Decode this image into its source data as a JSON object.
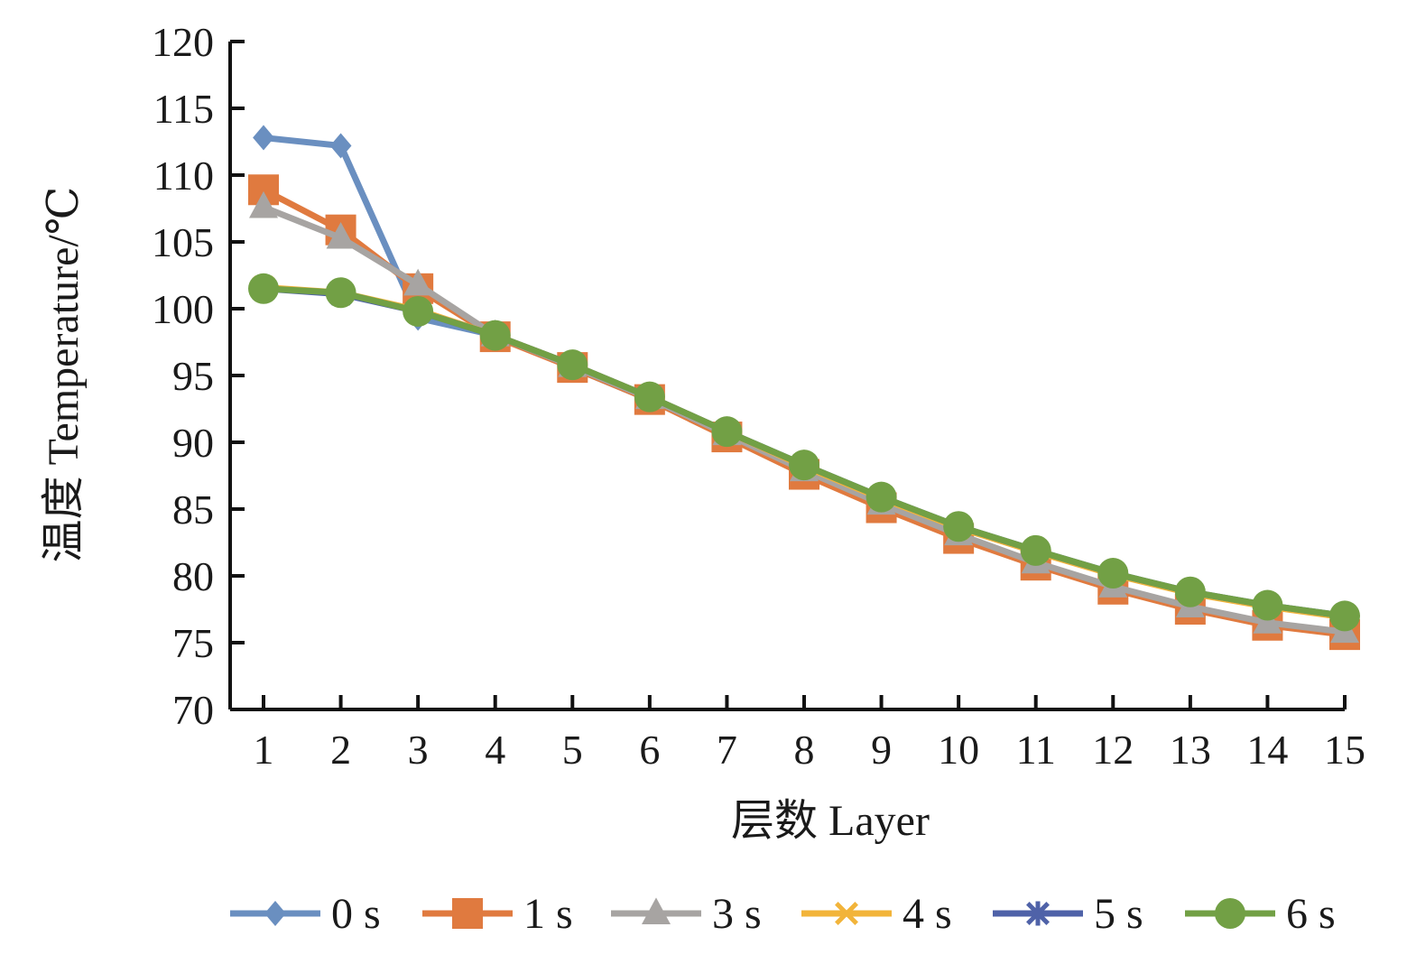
{
  "chart_data": {
    "type": "line",
    "xlabel": "层数 Layer",
    "ylabel": "温度 Temperature/℃",
    "categories": [
      "1",
      "2",
      "3",
      "4",
      "5",
      "6",
      "7",
      "8",
      "9",
      "10",
      "11",
      "12",
      "13",
      "14",
      "15"
    ],
    "y_ticks": [
      "70",
      "75",
      "80",
      "85",
      "90",
      "95",
      "100",
      "105",
      "110",
      "115",
      "120"
    ],
    "ylim": [
      70,
      120
    ],
    "grid": false,
    "legend_position": "bottom",
    "series": [
      {
        "name": "0 s",
        "color": "#6a8fc0",
        "marker": "diamond",
        "values": [
          112.8,
          112.2,
          99.3,
          98.0,
          95.6,
          93.2,
          90.5,
          87.8,
          85.3,
          83.0,
          80.9,
          79.1,
          77.6,
          76.3,
          75.7
        ]
      },
      {
        "name": "1 s",
        "color": "#e07a3f",
        "marker": "square",
        "values": [
          108.9,
          105.9,
          101.5,
          97.9,
          95.6,
          93.2,
          90.4,
          87.6,
          85.1,
          82.8,
          80.8,
          79.0,
          77.5,
          76.3,
          75.6
        ]
      },
      {
        "name": "3 s",
        "color": "#a7a4a2",
        "marker": "triangle",
        "values": [
          107.6,
          105.3,
          101.8,
          98.0,
          95.7,
          93.3,
          90.6,
          87.9,
          85.4,
          83.1,
          81.0,
          79.2,
          77.7,
          76.5,
          75.8
        ]
      },
      {
        "name": "4 s",
        "color": "#f2b43a",
        "marker": "x",
        "values": [
          101.6,
          101.2,
          99.9,
          98.0,
          95.8,
          93.4,
          90.8,
          88.2,
          85.8,
          83.6,
          81.8,
          80.1,
          78.7,
          77.7,
          76.9
        ]
      },
      {
        "name": "5 s",
        "color": "#4f62a8",
        "marker": "star",
        "values": [
          101.5,
          101.1,
          99.8,
          98.0,
          95.8,
          93.4,
          90.8,
          88.3,
          85.9,
          83.7,
          81.9,
          80.2,
          78.8,
          77.8,
          77.0
        ]
      },
      {
        "name": "6 s",
        "color": "#72a045",
        "marker": "circle",
        "values": [
          101.5,
          101.2,
          99.8,
          98.0,
          95.8,
          93.4,
          90.8,
          88.3,
          85.9,
          83.7,
          81.9,
          80.2,
          78.8,
          77.8,
          77.0
        ]
      }
    ]
  }
}
